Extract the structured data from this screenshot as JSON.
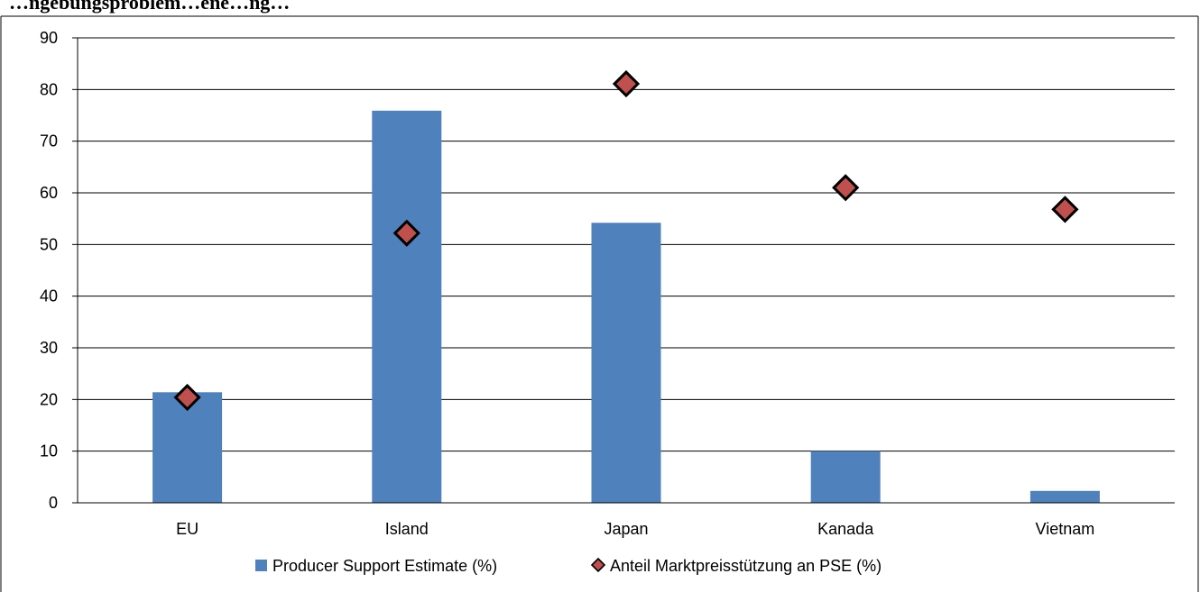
{
  "chart_data": {
    "type": "bar",
    "title": "…ngebungsproblem…ene…ng…",
    "categories": [
      "EU",
      "Island",
      "Japan",
      "Kanada",
      "Vietnam"
    ],
    "series": [
      {
        "name": "Producer Support Estimate (%)",
        "kind": "bar",
        "color": "#4F81BD",
        "values": [
          21.4,
          75.9,
          54.2,
          10.0,
          2.3
        ]
      },
      {
        "name": "Anteil Marktpreisstützung an PSE (%)",
        "kind": "marker",
        "marker": "diamond",
        "color": "#C0504D",
        "values": [
          20.4,
          52.2,
          81.1,
          61.0,
          56.8
        ]
      }
    ],
    "ylim": [
      0,
      90
    ],
    "yticks": [
      0,
      10,
      20,
      30,
      40,
      50,
      60,
      70,
      80,
      90
    ],
    "grid": true,
    "legend": "bottom"
  }
}
